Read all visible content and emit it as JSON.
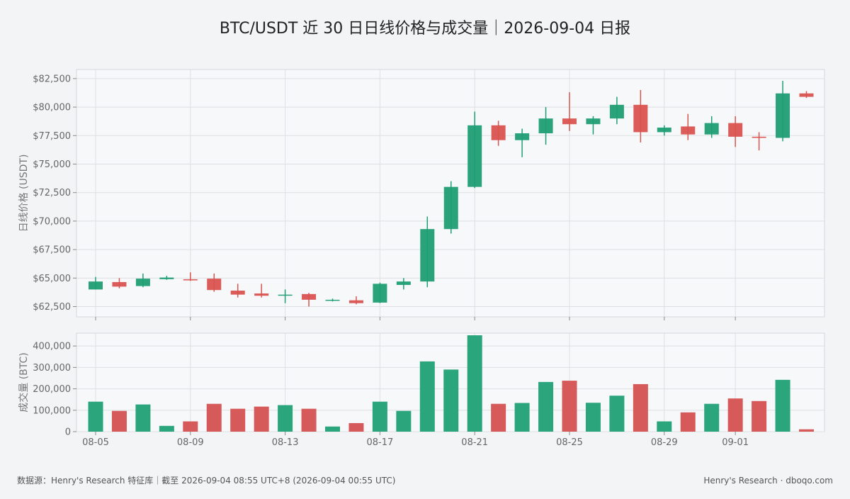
{
  "title": "BTC/USDT 近 30 日日线价格与成交量｜2026-09-04 日报",
  "footer": {
    "source": "数据源：Henry's Research 特征库｜截至 2026-09-04 08:55 UTC+8 (2026-09-04 00:55 UTC)",
    "brand": "Henry's Research · dboqo.com"
  },
  "colors": {
    "up": "#1f9e73",
    "down": "#d9534f",
    "up_volume": "#2aa57c",
    "down_volume": "#d65a5a",
    "grid": "#dddfe3",
    "plot_bg": "#f7f8f9"
  },
  "chart_data": [
    {
      "type": "candlestick",
      "ylabel": "日线价格 (USDT)",
      "ylim": [
        61600,
        83300
      ],
      "yticks": [
        62500,
        65000,
        67500,
        70000,
        72500,
        75000,
        77500,
        80000,
        82500
      ],
      "ytick_labels": [
        "$62,500",
        "$65,000",
        "$67,500",
        "$70,000",
        "$72,500",
        "$75,000",
        "$77,500",
        "$80,000",
        "$82,500"
      ],
      "grid": true,
      "dates": [
        "08-05",
        "08-06",
        "08-07",
        "08-08",
        "08-09",
        "08-10",
        "08-11",
        "08-12",
        "08-13",
        "08-14",
        "08-15",
        "08-16",
        "08-17",
        "08-18",
        "08-19",
        "08-20",
        "08-21",
        "08-22",
        "08-23",
        "08-24",
        "08-25",
        "08-26",
        "08-27",
        "08-28",
        "08-29",
        "08-30",
        "08-31",
        "09-01",
        "09-02",
        "09-03",
        "09-04"
      ],
      "open": [
        64000,
        64650,
        64300,
        64950,
        64900,
        64950,
        63900,
        63650,
        63500,
        63600,
        63050,
        63050,
        62850,
        64400,
        64700,
        69300,
        73000,
        78400,
        77100,
        77700,
        79000,
        78500,
        79000,
        80200,
        77800,
        78300,
        77600,
        78600,
        77400,
        77300,
        81200
      ],
      "high": [
        65100,
        65000,
        65400,
        65200,
        65500,
        65400,
        64500,
        64500,
        64000,
        63700,
        63200,
        63400,
        64600,
        65000,
        70400,
        73500,
        79600,
        78800,
        78100,
        80000,
        81300,
        79200,
        80900,
        81500,
        78400,
        79400,
        79200,
        79200,
        77800,
        82300,
        81400
      ],
      "low": [
        64000,
        64100,
        64200,
        64850,
        64750,
        63800,
        63300,
        63300,
        62800,
        62500,
        62950,
        62700,
        62800,
        64000,
        64200,
        68900,
        72900,
        76600,
        75600,
        76700,
        77900,
        77600,
        78500,
        76900,
        77500,
        77100,
        77300,
        76500,
        76200,
        77000,
        80800
      ],
      "close": [
        64700,
        64250,
        64950,
        65000,
        64800,
        63950,
        63550,
        63450,
        63500,
        63100,
        63050,
        62800,
        64500,
        64700,
        69300,
        73000,
        78400,
        77100,
        77700,
        79000,
        78500,
        79000,
        80200,
        77800,
        78200,
        77600,
        78600,
        77400,
        77300,
        81200,
        80900
      ],
      "x_tick_labels": [
        "08-05",
        "08-09",
        "08-13",
        "08-17",
        "08-21",
        "08-25",
        "08-29",
        "09-01"
      ]
    },
    {
      "type": "bar",
      "ylabel": "成交量 (BTC)",
      "ylim": [
        0,
        460000
      ],
      "yticks": [
        0,
        100000,
        200000,
        300000,
        400000
      ],
      "ytick_labels": [
        "0",
        "100,000",
        "200,000",
        "300,000",
        "400,000"
      ],
      "grid": true,
      "dates": [
        "08-05",
        "08-06",
        "08-07",
        "08-08",
        "08-09",
        "08-10",
        "08-11",
        "08-12",
        "08-13",
        "08-14",
        "08-15",
        "08-16",
        "08-17",
        "08-18",
        "08-19",
        "08-20",
        "08-21",
        "08-22",
        "08-23",
        "08-24",
        "08-25",
        "08-26",
        "08-27",
        "08-28",
        "08-29",
        "08-30",
        "08-31",
        "09-01",
        "09-02",
        "09-03",
        "09-04"
      ],
      "values": [
        140000,
        97000,
        127000,
        27000,
        48000,
        130000,
        107000,
        117000,
        124000,
        107000,
        24000,
        40000,
        140000,
        97000,
        328000,
        290000,
        450000,
        130000,
        134000,
        232000,
        238000,
        135000,
        168000,
        222000,
        48000,
        90000,
        130000,
        155000,
        143000,
        242000,
        11000
      ],
      "x_tick_labels": [
        "08-05",
        "08-09",
        "08-13",
        "08-17",
        "08-21",
        "08-25",
        "08-29",
        "09-01"
      ]
    }
  ]
}
